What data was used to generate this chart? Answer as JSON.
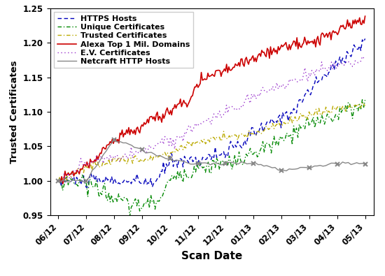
{
  "title": "",
  "xlabel": "Scan Date",
  "ylabel": "Trusted Certificates",
  "ylim": [
    0.95,
    1.25
  ],
  "xtick_labels": [
    "06/12",
    "07/12",
    "08/12",
    "09/12",
    "10/12",
    "11/12",
    "12/12",
    "01/13",
    "02/13",
    "03/13",
    "04/13",
    "05/13"
  ],
  "ytick_values": [
    0.95,
    1.0,
    1.05,
    1.1,
    1.15,
    1.2,
    1.25
  ],
  "legend_order": [
    "HTTPS Hosts",
    "Unique Certificates",
    "Trusted Certificates",
    "Alexa Top 1 Mil. Domains",
    "E.V. Certificates",
    "Netcraft HTTP Hosts"
  ],
  "series_styles": {
    "HTTPS Hosts": {
      "color": "#0000bb",
      "linestyle": "dashed",
      "marker": null,
      "linewidth": 1.0
    },
    "Unique Certificates": {
      "color": "#008800",
      "linestyle": "dashdot",
      "marker": null,
      "linewidth": 1.0
    },
    "Trusted Certificates": {
      "color": "#bbaa00",
      "linestyle": "dashdot",
      "marker": null,
      "linewidth": 1.0
    },
    "Alexa Top 1 Mil. Domains": {
      "color": "#cc0000",
      "linestyle": "solid",
      "marker": null,
      "linewidth": 1.2
    },
    "E.V. Certificates": {
      "color": "#9933cc",
      "linestyle": "dotted",
      "marker": null,
      "linewidth": 1.0
    },
    "Netcraft HTTP Hosts": {
      "color": "#888888",
      "linestyle": "solid",
      "marker": "x",
      "linewidth": 1.0
    }
  },
  "background_color": "#ffffff"
}
